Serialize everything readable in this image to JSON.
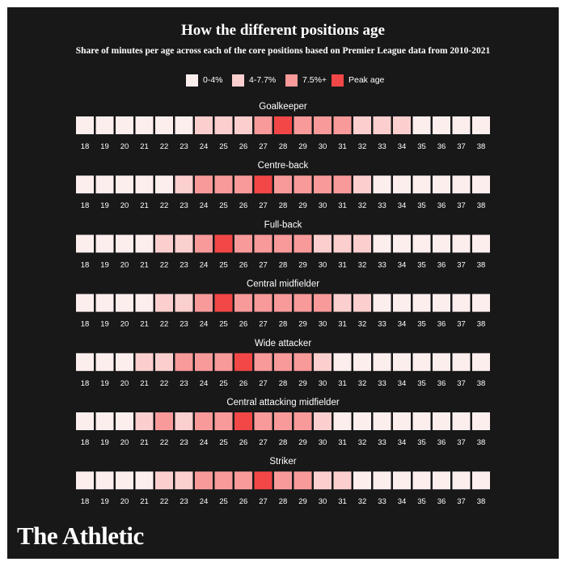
{
  "title": "How the different positions age",
  "subtitle": "Share of minutes per age across each of the core positions based on Premier League data from 2010-2021",
  "logo": "The Athletic",
  "chart_data": {
    "type": "heatmap",
    "ages": [
      18,
      19,
      20,
      21,
      22,
      23,
      24,
      25,
      26,
      27,
      28,
      29,
      30,
      31,
      32,
      33,
      34,
      35,
      36,
      37,
      38
    ],
    "legend": [
      {
        "label": "0-4%",
        "color": "#fdeeee"
      },
      {
        "label": "4-7.7%",
        "color": "#fccfcf"
      },
      {
        "label": "7.5%+",
        "color": "#f99a9a"
      },
      {
        "label": "Peak age",
        "color": "#f24747"
      }
    ],
    "levels_note": "0 = 0-4%, 1 = 4-7.7%, 2 = 7.5%+, 3 = Peak age",
    "positions": [
      {
        "name": "Goalkeeper",
        "levels": [
          0,
          0,
          0,
          0,
          0,
          0,
          1,
          1,
          1,
          2,
          3,
          2,
          2,
          2,
          1,
          1,
          1,
          0,
          0,
          0,
          0
        ]
      },
      {
        "name": "Centre-back",
        "levels": [
          0,
          0,
          0,
          0,
          0,
          1,
          2,
          2,
          2,
          3,
          2,
          2,
          2,
          2,
          1,
          0,
          0,
          0,
          0,
          0,
          0
        ]
      },
      {
        "name": "Full-back",
        "levels": [
          0,
          0,
          0,
          0,
          1,
          1,
          2,
          3,
          2,
          2,
          2,
          2,
          1,
          1,
          1,
          0,
          0,
          0,
          0,
          0,
          0
        ]
      },
      {
        "name": "Central midfielder",
        "levels": [
          0,
          0,
          0,
          0,
          1,
          1,
          2,
          3,
          2,
          2,
          2,
          2,
          2,
          1,
          1,
          0,
          0,
          0,
          0,
          0,
          0
        ]
      },
      {
        "name": "Wide attacker",
        "levels": [
          0,
          0,
          0,
          1,
          1,
          2,
          2,
          2,
          3,
          2,
          2,
          2,
          1,
          0,
          0,
          0,
          0,
          0,
          0,
          0,
          0
        ]
      },
      {
        "name": "Central attacking midfielder",
        "levels": [
          0,
          0,
          0,
          1,
          2,
          1,
          2,
          2,
          3,
          2,
          2,
          2,
          1,
          0,
          0,
          0,
          0,
          0,
          0,
          0,
          0
        ]
      },
      {
        "name": "Striker",
        "levels": [
          0,
          0,
          0,
          0,
          1,
          1,
          2,
          2,
          2,
          3,
          2,
          2,
          1,
          1,
          0,
          0,
          0,
          0,
          0,
          0,
          0
        ]
      }
    ]
  }
}
